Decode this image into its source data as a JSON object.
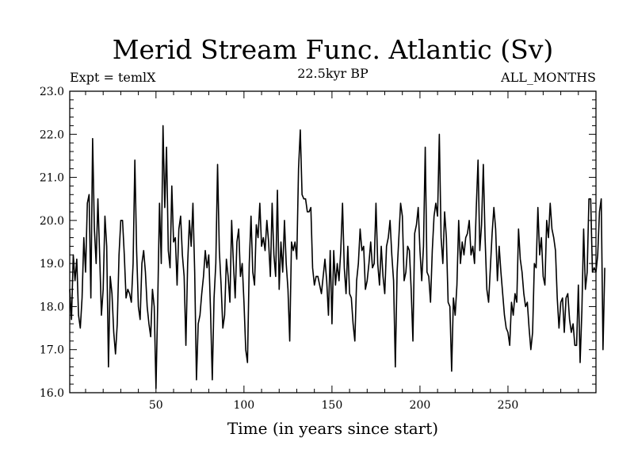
{
  "chart_data": {
    "type": "line",
    "title": "Merid Stream Func. Atlantic (Sv)",
    "top_left_label": "Expt = temlX",
    "top_center_label": "22.5kyr BP",
    "top_right_label": "ALL_MONTHS",
    "xlabel": "Time (in years since start)",
    "ylabel": "",
    "xlim": [
      1,
      300
    ],
    "ylim": [
      16.0,
      23.0
    ],
    "x_ticks": [
      50,
      100,
      150,
      200,
      250
    ],
    "y_ticks": [
      16.0,
      17.0,
      18.0,
      19.0,
      20.0,
      21.0,
      22.0,
      23.0
    ],
    "y_tick_labels": [
      "16.0",
      "17.0",
      "18.0",
      "19.0",
      "20.0",
      "21.0",
      "22.0",
      "23.0"
    ],
    "grid": false,
    "series": [
      {
        "x_start": 1,
        "x_step": 1,
        "values": [
          18.4,
          17.7,
          19.2,
          18.6,
          19.1,
          17.8,
          17.5,
          18.2,
          19.6,
          18.8,
          20.4,
          20.6,
          18.2,
          21.9,
          19.8,
          19.0,
          20.5,
          19.2,
          17.8,
          18.4,
          20.1,
          19.4,
          16.6,
          18.7,
          18.3,
          17.4,
          16.9,
          17.6,
          19.2,
          20.0,
          20.0,
          19.2,
          18.2,
          18.4,
          18.3,
          18.1,
          19.0,
          21.4,
          19.3,
          18.0,
          17.7,
          19.0,
          19.3,
          18.8,
          18.0,
          17.6,
          17.3,
          18.4,
          18.0,
          16.1,
          18.1,
          20.4,
          19.0,
          22.2,
          20.3,
          21.7,
          19.3,
          18.9,
          20.8,
          19.5,
          19.6,
          18.5,
          19.8,
          20.1,
          19.2,
          18.7,
          17.1,
          19.0,
          20.0,
          19.4,
          20.4,
          18.8,
          16.3,
          17.6,
          17.8,
          18.3,
          18.7,
          19.3,
          18.9,
          19.2,
          17.9,
          16.3,
          18.2,
          19.0,
          21.3,
          19.3,
          18.5,
          17.5,
          17.8,
          19.1,
          18.7,
          18.1,
          20.0,
          19.0,
          18.2,
          19.5,
          19.8,
          18.7,
          19.0,
          18.1,
          17.0,
          16.7,
          19.0,
          20.1,
          18.8,
          18.5,
          19.9,
          19.6,
          20.4,
          19.4,
          19.6,
          19.3,
          20.0,
          19.5,
          18.7,
          20.4,
          19.2,
          18.7,
          20.7,
          18.4,
          19.5,
          18.8,
          20.0,
          19.0,
          18.4,
          17.2,
          19.5,
          19.3,
          19.5,
          19.1,
          21.2,
          22.1,
          20.6,
          20.5,
          20.5,
          20.2,
          20.2,
          20.3,
          18.9,
          18.5,
          18.7,
          18.7,
          18.5,
          18.3,
          18.7,
          19.1,
          18.6,
          17.8,
          19.3,
          17.6,
          19.3,
          18.5,
          19.0,
          18.6,
          19.3,
          20.4,
          18.9,
          18.3,
          19.4,
          18.3,
          18.2,
          17.6,
          17.2,
          18.6,
          19.0,
          19.8,
          19.3,
          19.4,
          18.4,
          18.6,
          19.0,
          19.5,
          18.9,
          19.0,
          20.4,
          19.0,
          18.5,
          19.4,
          18.7,
          18.3,
          19.4,
          19.6,
          20.0,
          19.2,
          18.6,
          16.6,
          18.8,
          19.6,
          20.4,
          20.1,
          18.6,
          18.8,
          19.4,
          19.3,
          18.4,
          17.2,
          19.7,
          19.9,
          20.3,
          19.3,
          18.6,
          19.4,
          21.7,
          18.8,
          18.7,
          18.1,
          19.3,
          20.1,
          20.4,
          20.1,
          22.0,
          19.6,
          19.0,
          20.2,
          19.6,
          18.1,
          18.0,
          16.5,
          18.2,
          17.8,
          18.5,
          20.0,
          19.0,
          19.5,
          19.2,
          19.6,
          19.7,
          20.0,
          19.2,
          19.4,
          19.0,
          20.3,
          21.4,
          19.3,
          19.9,
          21.3,
          19.6,
          18.4,
          18.1,
          18.9,
          19.7,
          20.3,
          19.8,
          18.6,
          19.4,
          18.8,
          18.3,
          17.8,
          17.5,
          17.4,
          17.1,
          18.1,
          17.8,
          18.3,
          18.1,
          19.8,
          19.1,
          18.8,
          18.3,
          18.0,
          18.1,
          17.5,
          17.0,
          17.4,
          19.0,
          18.9,
          20.3,
          19.2,
          19.6,
          18.7,
          18.5,
          20.0,
          19.6,
          20.4,
          19.8,
          19.6,
          19.3,
          18.2,
          17.5,
          18.1,
          18.2,
          17.4,
          18.2,
          18.3,
          17.7,
          17.4,
          17.6,
          17.1,
          17.1,
          18.5,
          16.7,
          17.9,
          19.8,
          18.4,
          18.8,
          20.5,
          20.5,
          18.8,
          18.9,
          18.8,
          19.2,
          20.2,
          20.5,
          17.0,
          18.9
        ]
      }
    ]
  }
}
